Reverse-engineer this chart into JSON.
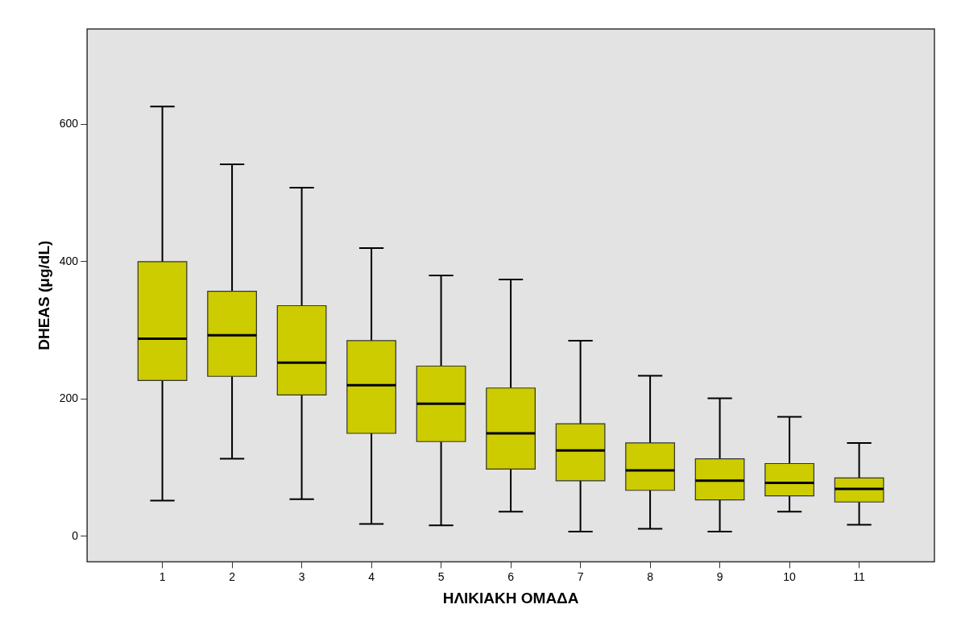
{
  "chart_data": {
    "type": "box",
    "xlabel": "ΗΛΙΚΙΑΚΗ ΟΜΑΔΑ",
    "ylabel": "DHEAS (μg/dL)",
    "categories": [
      "1",
      "2",
      "3",
      "4",
      "5",
      "6",
      "7",
      "8",
      "9",
      "10",
      "11"
    ],
    "color": "#cccc00",
    "ylim": [
      -37,
      739
    ],
    "yticks": [
      0,
      200,
      400,
      600
    ],
    "grid": false,
    "boxes": [
      {
        "low": 52,
        "q1": 227,
        "median": 288,
        "q3": 400,
        "high": 626
      },
      {
        "low": 113,
        "q1": 233,
        "median": 293,
        "q3": 357,
        "high": 542
      },
      {
        "low": 54,
        "q1": 206,
        "median": 253,
        "q3": 336,
        "high": 508
      },
      {
        "low": 18,
        "q1": 150,
        "median": 220,
        "q3": 285,
        "high": 420
      },
      {
        "low": 16,
        "q1": 138,
        "median": 193,
        "q3": 248,
        "high": 380
      },
      {
        "low": 36,
        "q1": 98,
        "median": 150,
        "q3": 216,
        "high": 374
      },
      {
        "low": 7,
        "q1": 81,
        "median": 125,
        "q3": 164,
        "high": 285
      },
      {
        "low": 11,
        "q1": 67,
        "median": 96,
        "q3": 136,
        "high": 234
      },
      {
        "low": 7,
        "q1": 53,
        "median": 81,
        "q3": 113,
        "high": 201
      },
      {
        "low": 36,
        "q1": 59,
        "median": 78,
        "q3": 106,
        "high": 174
      },
      {
        "low": 17,
        "q1": 50,
        "median": 69,
        "q3": 85,
        "high": 136
      }
    ]
  }
}
